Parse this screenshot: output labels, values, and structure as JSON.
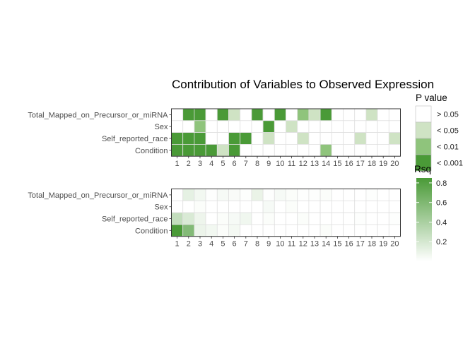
{
  "chart_data": [
    {
      "type": "heatmap",
      "title": "Contribution of Variables to Observed Expression",
      "metric": "P value",
      "rows": [
        "Total_Mapped_on_Precursor_or_miRNA",
        "Sex",
        "Self_reported_race",
        "Condition"
      ],
      "columns": [
        "1",
        "2",
        "3",
        "4",
        "5",
        "6",
        "7",
        "8",
        "9",
        "10",
        "11",
        "12",
        "13",
        "14",
        "15",
        "16",
        "17",
        "18",
        "19",
        "20"
      ],
      "values": [
        [
          4,
          3,
          3,
          4,
          3,
          1,
          4,
          3,
          4,
          3,
          4,
          2,
          1,
          3,
          4,
          4,
          4,
          1,
          4,
          4
        ],
        [
          4,
          4,
          2,
          4,
          4,
          4,
          4,
          4,
          3,
          4,
          1,
          4,
          4,
          4,
          4,
          4,
          4,
          4,
          4,
          4
        ],
        [
          3,
          3,
          3,
          4,
          4,
          3,
          3,
          4,
          1,
          4,
          4,
          1,
          4,
          4,
          4,
          4,
          1,
          4,
          4,
          1
        ],
        [
          3,
          3,
          3,
          3,
          1,
          3,
          4,
          4,
          4,
          4,
          4,
          4,
          4,
          2,
          4,
          4,
          4,
          4,
          4,
          4
        ]
      ],
      "value_key": {
        "1": "< 0.05",
        "2": "< 0.01",
        "3": "< 0.001",
        "4": "> 0.05"
      },
      "legend": {
        "title": "P value",
        "levels": [
          "> 0.05",
          "< 0.05",
          "< 0.01",
          "< 0.001"
        ],
        "colors": [
          "#ffffff",
          "#cfe3c4",
          "#8fc47c",
          "#4a9a37"
        ]
      }
    },
    {
      "type": "heatmap",
      "metric": "Rsq",
      "rows": [
        "Total_Mapped_on_Precursor_or_miRNA",
        "Sex",
        "Self_reported_race",
        "Condition"
      ],
      "columns": [
        "1",
        "2",
        "3",
        "4",
        "5",
        "6",
        "7",
        "8",
        "9",
        "10",
        "11",
        "12",
        "13",
        "14",
        "15",
        "16",
        "17",
        "18",
        "19",
        "20"
      ],
      "values": [
        [
          0.0,
          0.12,
          0.06,
          0.01,
          0.04,
          0.03,
          0.01,
          0.1,
          0.01,
          0.04,
          0.02,
          0.01,
          0.01,
          0.02,
          0.0,
          0.0,
          0.0,
          0.01,
          0.0,
          0.0
        ],
        [
          0.0,
          0.0,
          0.02,
          0.0,
          0.0,
          0.0,
          0.0,
          0.0,
          0.04,
          0.0,
          0.02,
          0.0,
          0.0,
          0.0,
          0.0,
          0.0,
          0.0,
          0.0,
          0.0,
          0.0
        ],
        [
          0.28,
          0.18,
          0.08,
          0.0,
          0.02,
          0.04,
          0.07,
          0.0,
          0.02,
          0.0,
          0.0,
          0.02,
          0.0,
          0.0,
          0.0,
          0.0,
          0.01,
          0.0,
          0.0,
          0.01
        ],
        [
          0.85,
          0.58,
          0.09,
          0.06,
          0.02,
          0.05,
          0.0,
          0.0,
          0.0,
          0.0,
          0.0,
          0.0,
          0.0,
          0.02,
          0.0,
          0.0,
          0.0,
          0.0,
          0.0,
          0.0
        ]
      ],
      "legend": {
        "title": "Rsq",
        "ticks": [
          "0.8",
          "0.6",
          "0.4",
          "0.2"
        ],
        "tick_values": [
          0.8,
          0.6,
          0.4,
          0.2
        ],
        "range": [
          0,
          0.85
        ],
        "color_low": "#ffffff",
        "color_high": "#4a9a37"
      }
    }
  ]
}
